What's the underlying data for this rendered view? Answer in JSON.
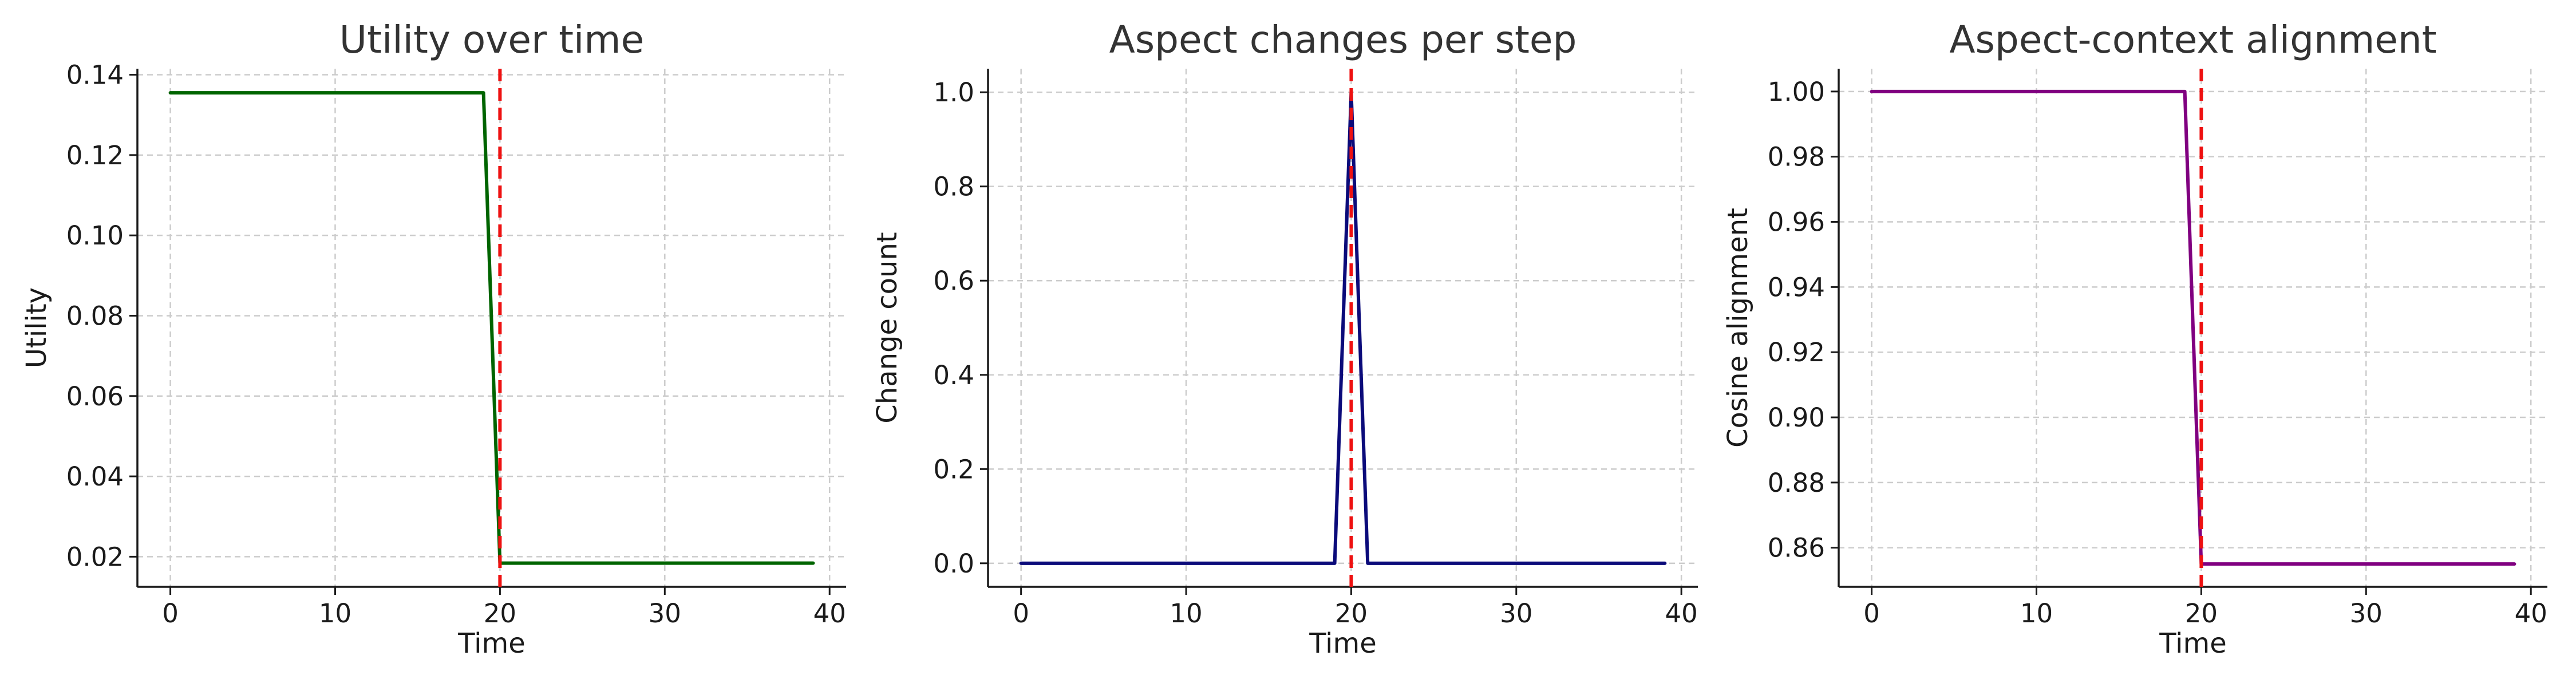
{
  "chart_data": [
    {
      "type": "line",
      "title": "Utility over time",
      "xlabel": "Time",
      "ylabel": "Utility",
      "xlim": [
        -2,
        41
      ],
      "ylim": [
        0.0125,
        0.1415
      ],
      "xticks": [
        0,
        10,
        20,
        30,
        40
      ],
      "yticks": [
        0.02,
        0.04,
        0.06,
        0.08,
        0.1,
        0.12,
        0.14
      ],
      "tick_decimals": 2,
      "grid": true,
      "series": [
        {
          "color": "#006400",
          "x": [
            0,
            19,
            20,
            39
          ],
          "y": [
            0.1355,
            0.1355,
            0.0184,
            0.0184
          ]
        }
      ],
      "vline": {
        "x": 20,
        "color": "#ee1111",
        "style": "dashed"
      }
    },
    {
      "type": "line",
      "title": "Aspect changes per step",
      "xlabel": "Time",
      "ylabel": "Change count",
      "xlim": [
        -2,
        41
      ],
      "ylim": [
        -0.05,
        1.05
      ],
      "xticks": [
        0,
        10,
        20,
        30,
        40
      ],
      "yticks": [
        0.0,
        0.2,
        0.4,
        0.6,
        0.8,
        1.0
      ],
      "tick_decimals": 1,
      "grid": true,
      "series": [
        {
          "color": "#0b0b7a",
          "x": [
            0,
            19,
            20,
            21,
            39
          ],
          "y": [
            0,
            0,
            1,
            0,
            0
          ]
        }
      ],
      "vline": {
        "x": 20,
        "color": "#ee1111",
        "style": "dashed"
      }
    },
    {
      "type": "line",
      "title": "Aspect-context alignment",
      "xlabel": "Time",
      "ylabel": "Cosine alignment",
      "xlim": [
        -2,
        41
      ],
      "ylim": [
        0.848,
        1.007
      ],
      "xticks": [
        0,
        10,
        20,
        30,
        40
      ],
      "yticks": [
        0.86,
        0.88,
        0.9,
        0.92,
        0.94,
        0.96,
        0.98,
        1.0
      ],
      "tick_decimals": 2,
      "grid": true,
      "series": [
        {
          "color": "#800080",
          "x": [
            0,
            19,
            20,
            39
          ],
          "y": [
            1.0,
            1.0,
            0.855,
            0.855
          ]
        }
      ],
      "vline": {
        "x": 20,
        "color": "#ee1111",
        "style": "dashed"
      }
    }
  ]
}
